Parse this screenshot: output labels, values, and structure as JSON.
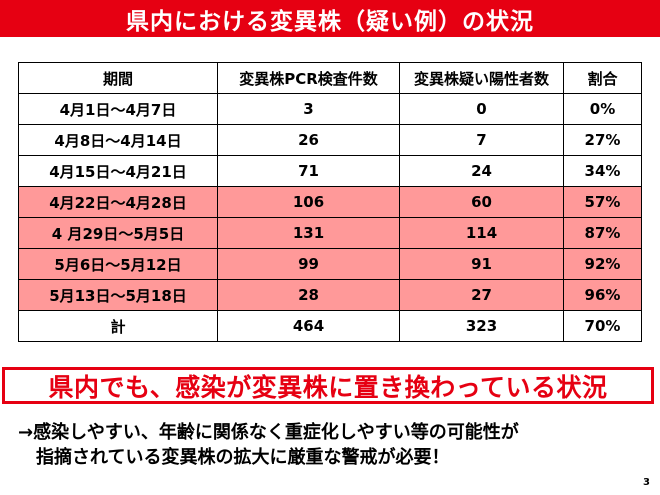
{
  "banner": {
    "title": "県内における変異株（疑い例）の状況",
    "color": "#e60012"
  },
  "table": {
    "headers": [
      "期間",
      "変異株PCR検査件数",
      "変異株疑い陽性者数",
      "割合"
    ],
    "rows": [
      {
        "period": "4月1日～4月7日",
        "pcr": "3",
        "suspected": "0",
        "ratio": "0%",
        "highlighted": false
      },
      {
        "period": "4月8日～4月14日",
        "pcr": "26",
        "suspected": "7",
        "ratio": "27%",
        "highlighted": false
      },
      {
        "period": "4月15日～4月21日",
        "pcr": "71",
        "suspected": "24",
        "ratio": "34%",
        "highlighted": false
      },
      {
        "period": "4月22日～4月28日",
        "pcr": "106",
        "suspected": "60",
        "ratio": "57%",
        "highlighted": true
      },
      {
        "period": "4 月29日～5月5日",
        "pcr": "131",
        "suspected": "114",
        "ratio": "87%",
        "highlighted": true
      },
      {
        "period": "5月6日～5月12日",
        "pcr": "99",
        "suspected": "91",
        "ratio": "92%",
        "highlighted": true
      },
      {
        "period": "5月13日～5月18日",
        "pcr": "28",
        "suspected": "27",
        "ratio": "96%",
        "highlighted": true
      }
    ],
    "total": {
      "label": "計",
      "pcr": "464",
      "suspected": "323",
      "ratio": "70%"
    },
    "highlight_color": "#ff9999"
  },
  "callout": {
    "text": "県内でも、感染が変異株に置き換わっている状況",
    "color": "#e60012"
  },
  "note": {
    "line1": "→感染しやすい、年齢に関係なく重症化しやすい等の可能性が",
    "line2": "指摘されている変異株の拡大に厳重な警戒が必要！"
  },
  "page_number": "3"
}
